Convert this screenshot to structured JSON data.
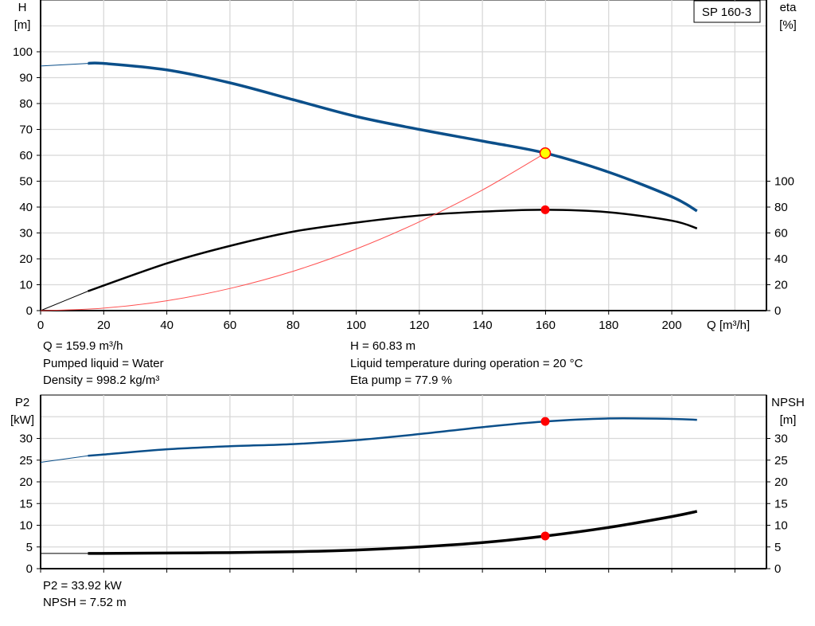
{
  "pump_label": "SP 160-3",
  "colors": {
    "head": "#0b4f8a",
    "eta": "#000000",
    "system": "#ff5050",
    "p2": "#0b4f8a",
    "npsh": "#000000",
    "point": "#ff0000",
    "duty_fill": "#ffff00"
  },
  "readouts_top": {
    "q": "Q = 159.9 m³/h",
    "liquid": "Pumped liquid = Water",
    "density": "Density = 998.2 kg/m³",
    "h": "H = 60.83 m",
    "temp": "Liquid temperature during operation = 20 °C",
    "eta": "Eta pump = 77.9 %"
  },
  "readouts_bottom": {
    "p2": "P2 = 33.92 kW",
    "npsh": "NPSH = 7.52 m"
  },
  "chart_data": [
    {
      "type": "line",
      "xlabel": "Q [m³/h]",
      "xlim": [
        0,
        230
      ],
      "xticks": [
        0,
        20,
        40,
        60,
        80,
        100,
        120,
        140,
        160,
        180,
        200
      ],
      "ylabel_left": "H",
      "ylabel_left_unit": "[m]",
      "ylim_left": [
        0,
        120
      ],
      "yticks_left": [
        0,
        10,
        20,
        30,
        40,
        50,
        60,
        70,
        80,
        90,
        100
      ],
      "ylabel_right": "eta",
      "ylabel_right_unit": "[%]",
      "ylim_right": [
        0,
        240
      ],
      "yticks_right": [
        0,
        20,
        40,
        60,
        80,
        100
      ],
      "grid": true,
      "series": [
        {
          "key": "head",
          "axis": "left",
          "x": [
            0,
            15,
            20,
            40,
            60,
            80,
            100,
            120,
            140,
            160,
            180,
            200,
            208
          ],
          "values": [
            94.5,
            95.5,
            95.5,
            93,
            88,
            81.5,
            75,
            70,
            65.5,
            60.83,
            53.5,
            44,
            38.5
          ]
        },
        {
          "key": "eta",
          "axis": "right",
          "x": [
            0,
            15,
            40,
            60,
            80,
            100,
            120,
            140,
            160,
            180,
            200,
            208
          ],
          "values": [
            0,
            15,
            36.5,
            50,
            61,
            68,
            73.5,
            76.5,
            77.9,
            76,
            69.5,
            63.5
          ]
        },
        {
          "key": "system",
          "axis": "left",
          "x": [
            0,
            20,
            40,
            60,
            80,
            100,
            120,
            140,
            159.9
          ],
          "values": [
            0,
            0.95,
            3.8,
            8.56,
            15.2,
            23.8,
            34.3,
            46.6,
            60.83
          ]
        }
      ],
      "points": [
        {
          "key": "duty-point-head",
          "axis": "left",
          "x": 159.9,
          "y": 60.83
        },
        {
          "key": "duty-point-eta",
          "axis": "right",
          "x": 159.9,
          "y": 77.9
        }
      ]
    },
    {
      "type": "line",
      "xlim": [
        0,
        230
      ],
      "xticks": [
        0,
        20,
        40,
        60,
        80,
        100,
        120,
        140,
        160,
        180,
        200,
        220
      ],
      "ylabel_left": "P2",
      "ylabel_left_unit": "[kW]",
      "ylim_left": [
        0,
        40
      ],
      "yticks_left": [
        0,
        5,
        10,
        15,
        20,
        25,
        30
      ],
      "ylabel_right": "NPSH",
      "ylabel_right_unit": "[m]",
      "ylim_right": [
        0,
        40
      ],
      "yticks_right": [
        0,
        5,
        10,
        15,
        20,
        25,
        30
      ],
      "grid": true,
      "series": [
        {
          "key": "p2",
          "axis": "left",
          "x": [
            0,
            15,
            20,
            40,
            60,
            80,
            100,
            120,
            140,
            160,
            180,
            200,
            208
          ],
          "values": [
            24.5,
            26,
            26.3,
            27.5,
            28.2,
            28.7,
            29.6,
            31,
            32.6,
            33.92,
            34.6,
            34.5,
            34.3
          ]
        },
        {
          "key": "npsh",
          "axis": "right",
          "x": [
            0,
            15,
            40,
            60,
            80,
            100,
            120,
            140,
            160,
            180,
            200,
            208
          ],
          "values": [
            3.5,
            3.5,
            3.6,
            3.7,
            3.9,
            4.3,
            5,
            6,
            7.52,
            9.5,
            12,
            13.2
          ]
        }
      ],
      "points": [
        {
          "key": "duty-point-p2",
          "axis": "left",
          "x": 159.9,
          "y": 33.92
        },
        {
          "key": "duty-point-npsh",
          "axis": "right",
          "x": 159.9,
          "y": 7.52
        }
      ]
    }
  ]
}
